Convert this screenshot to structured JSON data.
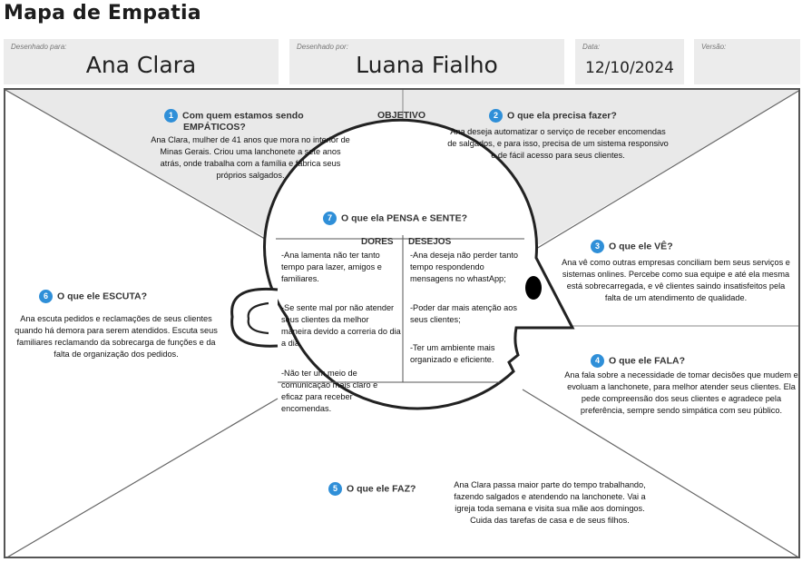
{
  "page_title": "Mapa de Empatia",
  "header": {
    "designed_for_label": "Desenhado para:",
    "designed_for_value": "Ana Clara",
    "designed_by_label": "Desenhado por:",
    "designed_by_value": "Luana Fialho",
    "date_label": "Data:",
    "date_value": "12/10/2024",
    "version_label": "Versão:",
    "version_value": ""
  },
  "objective_label": "OBJETIVO",
  "sections": {
    "s1": {
      "num": "1",
      "title_line1": "Com quem estamos sendo",
      "title_line2": "EMPÁTICOS?",
      "text": "Ana Clara, mulher de 41 anos que mora no interior de Minas Gerais. Criou uma lanchonete a sete anos atrás, onde trabalha com a família e fabrica seus próprios salgados."
    },
    "s2": {
      "num": "2",
      "title": "O que ela precisa fazer?",
      "text": "Ana deseja automatizar o serviço de receber encomendas de salgados, e para isso, precisa de um sistema responsivo e de fácil acesso para seus clientes."
    },
    "s3": {
      "num": "3",
      "title": "O que ele VÊ?",
      "text": "Ana vê como outras empresas conciliam bem seus serviços e sistemas onlines. Percebe como sua equipe  e até ela mesma está sobrecarregada, e vê clientes saindo insatisfeitos pela falta de um atendimento de qualidade."
    },
    "s4": {
      "num": "4",
      "title": "O que ele FALA?",
      "text": "Ana fala sobre a necessidade de tomar decisões que mudem e evoluam a lanchonete, para melhor atender seus clientes. Ela pede compreensão dos seus clientes e agradece pela preferência, sempre sendo simpática com seu público."
    },
    "s5": {
      "num": "5",
      "title": "O que ele FAZ?",
      "text": "Ana Clara passa maior parte do tempo trabalhando, fazendo salgados e atendendo na lanchonete. Vai a igreja toda semana e visita sua mãe aos domingos. Cuida das tarefas de casa e de seus filhos."
    },
    "s6": {
      "num": "6",
      "title": "O que ele ESCUTA?",
      "text": "Ana escuta pedidos e reclamações de seus clientes quando há demora para serem atendidos. Escuta seus familiares reclamando da sobrecarga de funções e da falta de organização dos pedidos."
    },
    "s7": {
      "num": "7",
      "title": "O que ela PENSA e SENTE?",
      "pains_header": "DORES",
      "desires_header": "DESEJOS",
      "pain1": "-Ana lamenta não ter tanto tempo para lazer, amigos e familiares.",
      "pain2": "-Se sente mal por não atender seus clientes da melhor maneira devido a correria do dia a dia.",
      "pain3": "-Não ter um meio de comunicação mais claro e eficaz para receber encomendas.",
      "desire1": "-Ana deseja não perder tanto tempo respondendo mensagens no whastApp;",
      "desire2": "-Poder dar mais atenção aos seus clientes;",
      "desire3": "-Ter um ambiente mais organizado e eficiente."
    }
  }
}
